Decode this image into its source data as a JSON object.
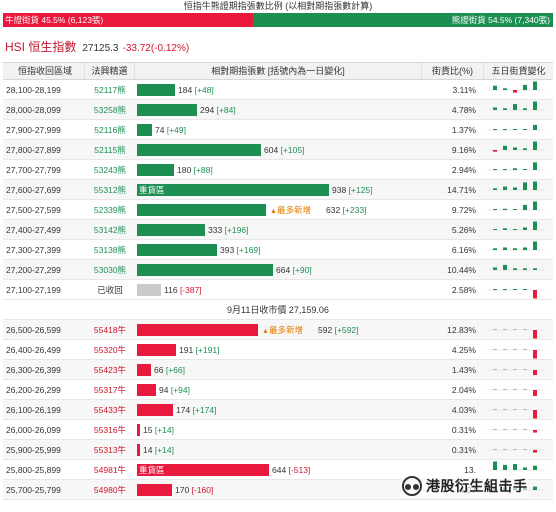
{
  "ratio": {
    "title": "恒指牛熊證期指張數比例 (以相對期指張數計算)",
    "bull_label": "牛證街貨 45.5% (6,123張)",
    "bear_label": "熊證街貨 54.5% (7,340張)",
    "bull_pct": 45.5,
    "colors": {
      "bull": "#e8193c",
      "bear": "#1e8f53"
    }
  },
  "index": {
    "name": "HSI 恒生指數",
    "price": "27125.3",
    "change": "-33.72(-0.12%)"
  },
  "table": {
    "headers": {
      "range": "恒指收回區域",
      "code": "法興精選",
      "contracts": "相對期指張數 [括號內為一日變化]",
      "pct": "街貨比(%)",
      "trend": "五日街貨變化"
    },
    "max_contracts": 938,
    "bear_rows": [
      {
        "range": "28,100-28,199",
        "code": "52117熊",
        "count": "184",
        "change": "[+48]",
        "value": 184,
        "pct": "3.11%",
        "trend": [
          0.5,
          0.2,
          -0.3,
          0.6,
          1
        ]
      },
      {
        "range": "28,000-28,099",
        "code": "53258熊",
        "count": "294",
        "change": "[+84]",
        "value": 294,
        "pct": "4.78%",
        "trend": [
          0.3,
          0.2,
          0.7,
          0.2,
          1
        ]
      },
      {
        "range": "27,900-27,999",
        "code": "52116熊",
        "count": "74",
        "change": "[+49]",
        "value": 74,
        "pct": "1.37%",
        "trend": [
          0.1,
          0.1,
          0.1,
          0.1,
          0.6
        ]
      },
      {
        "range": "27,800-27,899",
        "code": "52115熊",
        "count": "604",
        "change": "[+105]",
        "value": 604,
        "pct": "9.16%",
        "trend": [
          -0.2,
          0.5,
          0.3,
          0.2,
          1
        ]
      },
      {
        "range": "27,700-27,799",
        "code": "53243熊",
        "count": "180",
        "change": "[+88]",
        "value": 180,
        "pct": "2.94%",
        "trend": [
          0.1,
          0.1,
          0.2,
          0.1,
          0.9
        ]
      },
      {
        "range": "27,600-27,699",
        "code": "55312熊",
        "count": "938",
        "change": "[+125]",
        "value": 938,
        "pct": "14.71%",
        "label": "重貨區",
        "trend": [
          0.2,
          0.4,
          0.3,
          0.9,
          1
        ]
      },
      {
        "range": "27,500-27,599",
        "code": "52339熊",
        "count": "632",
        "change": "[+233]",
        "value": 632,
        "pct": "9.72%",
        "note": "最多新增",
        "trend": [
          0.1,
          0.15,
          0.1,
          0.6,
          1
        ]
      },
      {
        "range": "27,400-27,499",
        "code": "53142熊",
        "count": "333",
        "change": "[+196]",
        "value": 333,
        "pct": "5.26%",
        "trend": [
          0.1,
          0.2,
          0.1,
          0.3,
          1
        ]
      },
      {
        "range": "27,300-27,399",
        "code": "53138熊",
        "count": "393",
        "change": "[+169]",
        "value": 393,
        "pct": "6.16%",
        "trend": [
          0.2,
          0.3,
          0.2,
          0.3,
          1
        ]
      },
      {
        "range": "27,200-27,299",
        "code": "53030熊",
        "count": "664",
        "change": "[+90]",
        "value": 664,
        "pct": "10.44%",
        "trend": [
          0.3,
          0.6,
          0.2,
          0.2,
          0.2
        ]
      },
      {
        "range": "27,100-27,199",
        "code": "已收回",
        "count": "116",
        "change": "[-387]",
        "value": 116,
        "pct": "2.58%",
        "recalled": true,
        "trend": [
          0.1,
          0.1,
          0.1,
          0.1,
          -1
        ]
      }
    ],
    "close_label": "9月11日收市價 27,159.06",
    "bull_rows": [
      {
        "range": "26,500-26,599",
        "code": "55418牛",
        "count": "592",
        "change": "[+592]",
        "value": 592,
        "pct": "12.83%",
        "note": "最多新增",
        "trend": [
          0,
          0,
          0,
          0,
          -1
        ]
      },
      {
        "range": "26,400-26,499",
        "code": "55320牛",
        "count": "191",
        "change": "[+191]",
        "value": 191,
        "pct": "4.25%",
        "trend": [
          0,
          0,
          0,
          0,
          -1
        ]
      },
      {
        "range": "26,300-26,399",
        "code": "55423牛",
        "count": "66",
        "change": "[+66]",
        "value": 66,
        "pct": "1.43%",
        "trend": [
          0,
          0,
          0,
          0,
          -0.6
        ]
      },
      {
        "range": "26,200-26,299",
        "code": "55317牛",
        "count": "94",
        "change": "[+94]",
        "value": 94,
        "pct": "2.04%",
        "trend": [
          0,
          0,
          0,
          0,
          -0.7
        ]
      },
      {
        "range": "26,100-26,199",
        "code": "55433牛",
        "count": "174",
        "change": "[+174]",
        "value": 174,
        "pct": "4.03%",
        "trend": [
          0,
          0,
          0,
          0,
          -1
        ]
      },
      {
        "range": "26,000-26,099",
        "code": "55316牛",
        "count": "15",
        "change": "[+14]",
        "value": 15,
        "pct": "0.31%",
        "trend": [
          0,
          0,
          0,
          0,
          -0.3
        ]
      },
      {
        "range": "25,900-25,999",
        "code": "55313牛",
        "count": "14",
        "change": "[+14]",
        "value": 14,
        "pct": "0.31%",
        "trend": [
          0,
          0,
          0,
          0,
          -0.3
        ]
      },
      {
        "range": "25,800-25,899",
        "code": "54981牛",
        "count": "644",
        "change": "[-513]",
        "value": 644,
        "pct": "13.",
        "label": "重貨區",
        "trend": [
          1,
          0.6,
          0.7,
          0.3,
          0.5
        ]
      },
      {
        "range": "25,700-25,799",
        "code": "54980牛",
        "count": "170",
        "change": "[-160]",
        "value": 170,
        "pct": "4.07",
        "trend": [
          0.2,
          0.3,
          0.2,
          0.3,
          0.4
        ]
      }
    ]
  },
  "watermark": {
    "text": "港股衍生組击手"
  }
}
